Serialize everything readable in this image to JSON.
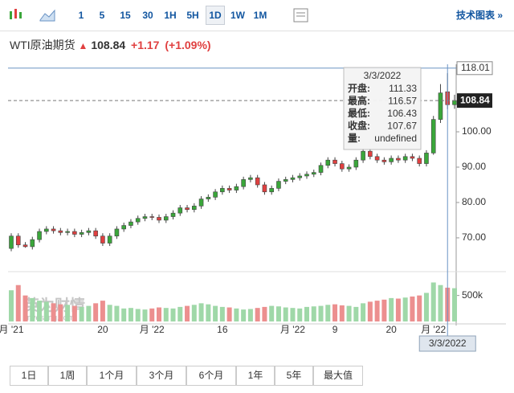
{
  "toolbar": {
    "intervals": [
      "1",
      "5",
      "15",
      "30",
      "1H",
      "5H",
      "1D",
      "1W",
      "1M"
    ],
    "selected": "1D",
    "link": "技术图表 »"
  },
  "header": {
    "name": "WTI原油期货",
    "change": "+1.17",
    "change_pct": "(+1.09%)"
  },
  "watermark": [
    "英为财情",
    "Investing.com"
  ],
  "tooltip": {
    "labels": [
      "开盘:",
      "最高:",
      "最低:",
      "收盘:",
      "量:"
    ],
    "volume_text": "undefined"
  },
  "ranges": [
    "1日",
    "1周",
    "1个月",
    "3个月",
    "6个月",
    "1年",
    "5年",
    "最大值"
  ],
  "chart_data": {
    "type": "candlestick",
    "categories": [
      "月 '21",
      null,
      null,
      null,
      null,
      null,
      null,
      null,
      null,
      null,
      null,
      null,
      null,
      "20",
      null,
      null,
      null,
      null,
      null,
      null,
      "月 '22",
      null,
      null,
      null,
      null,
      null,
      null,
      null,
      null,
      null,
      "16",
      null,
      null,
      null,
      null,
      null,
      null,
      null,
      null,
      null,
      "月 '22",
      null,
      null,
      null,
      null,
      null,
      "9",
      null,
      null,
      null,
      null,
      null,
      null,
      null,
      "20",
      null,
      null,
      null,
      null,
      null,
      "月 '22",
      null,
      null,
      null
    ],
    "open": [
      67.0,
      70.5,
      68.0,
      67.5,
      69.5,
      71.8,
      72.5,
      72.0,
      71.5,
      71.8,
      71.0,
      71.5,
      72.0,
      70.5,
      68.5,
      70.5,
      72.5,
      73.5,
      74.5,
      75.5,
      76.0,
      75.8,
      75.0,
      76.0,
      77.0,
      78.5,
      78.0,
      79.0,
      81.0,
      81.5,
      83.0,
      84.0,
      83.5,
      84.5,
      86.5,
      87.0,
      85.0,
      83.0,
      84.0,
      86.0,
      86.5,
      87.0,
      87.5,
      88.0,
      88.5,
      90.5,
      92.0,
      91.0,
      89.5,
      90.0,
      92.0,
      94.5,
      93.0,
      92.0,
      91.5,
      92.5,
      92.0,
      93.0,
      92.5,
      91.0,
      94.0,
      103.5,
      111.33,
      107.67
    ],
    "high": [
      71.3,
      71.3,
      68.8,
      70.3,
      72.6,
      73.3,
      73.3,
      72.8,
      72.6,
      72.6,
      72.3,
      72.8,
      72.8,
      71.3,
      71.3,
      73.3,
      74.3,
      75.3,
      76.3,
      76.8,
      76.8,
      76.6,
      76.8,
      77.8,
      79.3,
      79.3,
      79.8,
      81.8,
      82.3,
      83.8,
      84.8,
      84.8,
      85.3,
      87.3,
      87.8,
      87.8,
      85.8,
      84.8,
      86.8,
      87.3,
      87.8,
      88.3,
      88.8,
      89.3,
      91.3,
      92.8,
      92.8,
      91.8,
      90.8,
      92.8,
      95.3,
      95.3,
      93.8,
      92.8,
      93.3,
      93.3,
      93.8,
      93.8,
      93.3,
      94.8,
      104.5,
      113.5,
      116.57,
      110.5
    ],
    "low": [
      66.2,
      67.2,
      67.2,
      66.7,
      68.7,
      71.0,
      71.2,
      70.7,
      70.7,
      70.2,
      70.2,
      70.7,
      69.7,
      67.7,
      67.7,
      69.7,
      71.7,
      72.7,
      73.7,
      74.7,
      75.0,
      74.2,
      74.2,
      75.2,
      76.2,
      77.2,
      77.2,
      78.2,
      80.2,
      80.7,
      82.2,
      82.7,
      82.7,
      83.7,
      85.7,
      84.2,
      82.2,
      82.2,
      83.2,
      85.2,
      85.7,
      86.2,
      86.7,
      87.2,
      87.7,
      89.7,
      90.2,
      88.7,
      88.7,
      89.2,
      91.2,
      92.2,
      91.2,
      90.7,
      90.7,
      91.2,
      91.2,
      91.7,
      90.2,
      90.2,
      93.5,
      102.5,
      106.43,
      106.5
    ],
    "close": [
      70.5,
      68.0,
      67.5,
      69.5,
      71.8,
      72.5,
      72.0,
      71.5,
      71.8,
      71.0,
      71.5,
      72.0,
      70.5,
      68.5,
      70.5,
      72.5,
      73.5,
      74.5,
      75.5,
      76.0,
      75.8,
      75.0,
      76.0,
      77.0,
      78.5,
      78.0,
      79.0,
      81.0,
      81.5,
      83.0,
      84.0,
      83.5,
      84.5,
      86.5,
      87.0,
      85.0,
      83.0,
      84.0,
      86.0,
      86.5,
      87.0,
      87.5,
      88.0,
      88.5,
      90.5,
      92.0,
      91.0,
      89.5,
      90.0,
      92.0,
      94.5,
      93.0,
      92.0,
      91.5,
      92.5,
      92.0,
      93.0,
      92.5,
      91.0,
      94.0,
      103.5,
      111.0,
      107.67,
      108.84
    ],
    "volume": [
      600000,
      700000,
      500000,
      450000,
      400000,
      380000,
      350000,
      330000,
      320000,
      300000,
      280000,
      300000,
      350000,
      400000,
      320000,
      300000,
      250000,
      260000,
      240000,
      230000,
      250000,
      270000,
      260000,
      250000,
      280000,
      300000,
      320000,
      350000,
      330000,
      300000,
      280000,
      270000,
      250000,
      230000,
      240000,
      260000,
      280000,
      300000,
      290000,
      270000,
      260000,
      250000,
      280000,
      290000,
      300000,
      320000,
      330000,
      310000,
      300000,
      280000,
      350000,
      380000,
      400000,
      420000,
      450000,
      440000,
      460000,
      480000,
      500000,
      550000,
      750000,
      700000,
      650000,
      640000
    ],
    "ylim": [
      61.8,
      119.1
    ],
    "yticks": [
      {
        "value": 70,
        "label": "70.00"
      },
      {
        "value": 80,
        "label": "80.00"
      },
      {
        "value": 90,
        "label": "90.00"
      },
      {
        "value": 100,
        "label": "100.00"
      }
    ],
    "vlim": [
      0,
      850000
    ],
    "vticks": [
      {
        "value": 500000,
        "label": "500k"
      }
    ],
    "up_color": "#3aa63a",
    "down_color": "#e04040",
    "up_volume_color": "#9fd8a8",
    "down_volume_color": "#ec8f8f",
    "crosshair_index": 62,
    "crosshair_date": "3/3/2022",
    "crosshair_price": {
      "value": 118.01,
      "label": "118.01"
    }
  }
}
